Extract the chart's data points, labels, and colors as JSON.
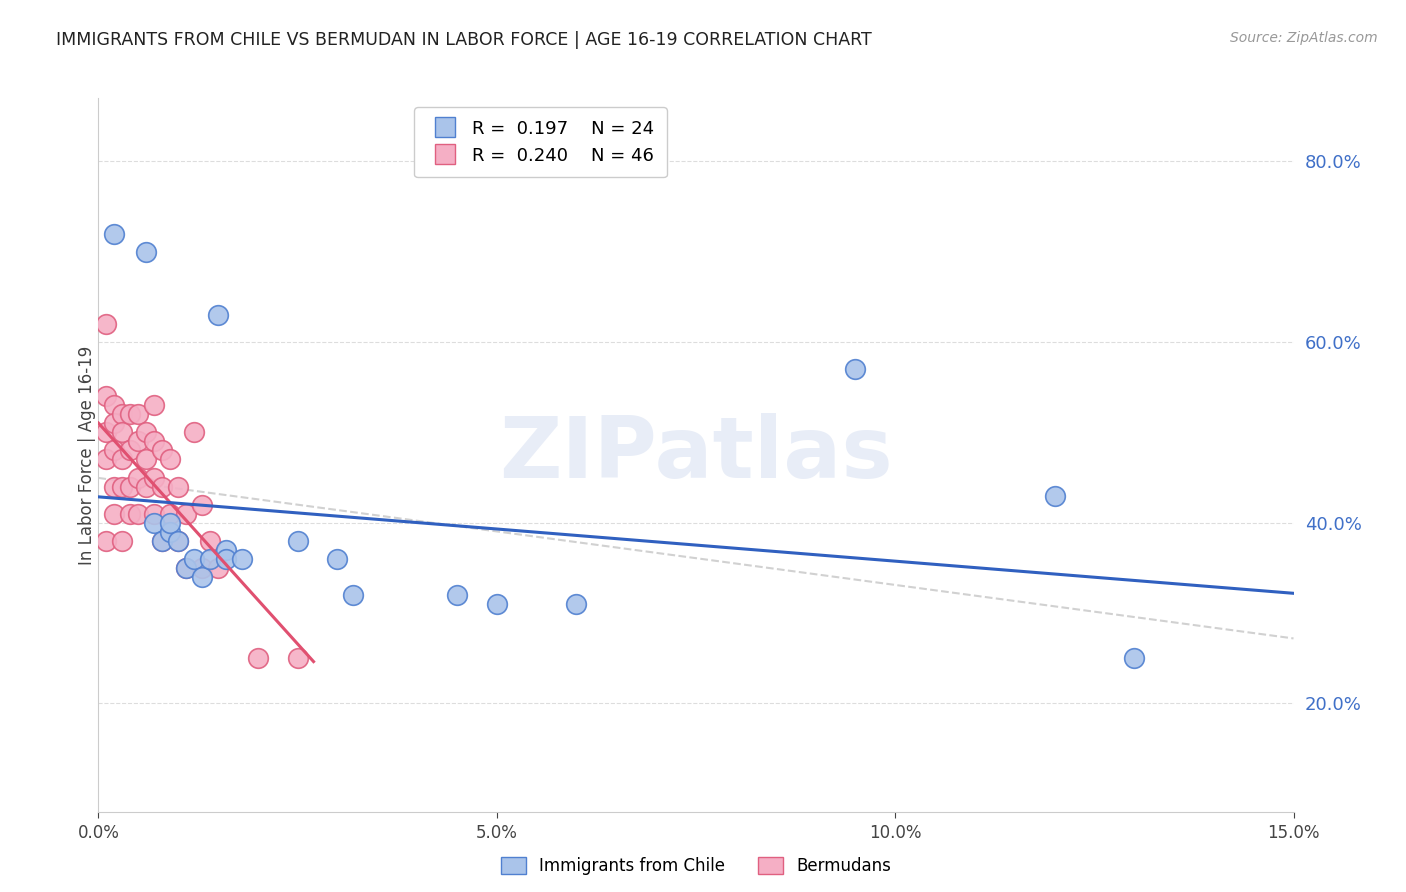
{
  "title": "IMMIGRANTS FROM CHILE VS BERMUDAN IN LABOR FORCE | AGE 16-19 CORRELATION CHART",
  "source": "Source: ZipAtlas.com",
  "ylabel": "In Labor Force | Age 16-19",
  "xmin": 0.0,
  "xmax": 0.15,
  "ymin": 0.08,
  "ymax": 0.87,
  "yticks": [
    0.2,
    0.4,
    0.6,
    0.8
  ],
  "xticks": [
    0.0,
    0.05,
    0.1,
    0.15
  ],
  "blue_label": "Immigrants from Chile",
  "pink_label": "Bermudans",
  "blue_R": "0.197",
  "blue_N": "24",
  "pink_R": "0.240",
  "pink_N": "46",
  "blue_color": "#aac4ea",
  "pink_color": "#f5afc5",
  "blue_edge_color": "#5080d0",
  "pink_edge_color": "#e06080",
  "blue_line_color": "#3060c0",
  "pink_line_color": "#e05070",
  "dashed_line_color": "#cccccc",
  "title_color": "#222222",
  "axis_label_color": "#4070c8",
  "watermark": "ZIPatlas",
  "blue_x": [
    0.002,
    0.006,
    0.007,
    0.008,
    0.009,
    0.009,
    0.01,
    0.011,
    0.012,
    0.013,
    0.014,
    0.015,
    0.016,
    0.016,
    0.018,
    0.025,
    0.03,
    0.032,
    0.045,
    0.05,
    0.06,
    0.095,
    0.12,
    0.13
  ],
  "blue_y": [
    0.72,
    0.7,
    0.4,
    0.38,
    0.39,
    0.4,
    0.38,
    0.35,
    0.36,
    0.34,
    0.36,
    0.63,
    0.37,
    0.36,
    0.36,
    0.38,
    0.36,
    0.32,
    0.32,
    0.31,
    0.31,
    0.57,
    0.43,
    0.25
  ],
  "pink_x": [
    0.001,
    0.001,
    0.001,
    0.001,
    0.001,
    0.002,
    0.002,
    0.002,
    0.002,
    0.002,
    0.003,
    0.003,
    0.003,
    0.003,
    0.003,
    0.004,
    0.004,
    0.004,
    0.004,
    0.005,
    0.005,
    0.005,
    0.005,
    0.006,
    0.006,
    0.006,
    0.007,
    0.007,
    0.007,
    0.007,
    0.008,
    0.008,
    0.008,
    0.009,
    0.009,
    0.01,
    0.01,
    0.011,
    0.011,
    0.012,
    0.013,
    0.013,
    0.014,
    0.015,
    0.02,
    0.025
  ],
  "pink_y": [
    0.62,
    0.54,
    0.5,
    0.47,
    0.38,
    0.53,
    0.51,
    0.48,
    0.44,
    0.41,
    0.52,
    0.5,
    0.47,
    0.44,
    0.38,
    0.52,
    0.48,
    0.44,
    0.41,
    0.52,
    0.49,
    0.45,
    0.41,
    0.5,
    0.47,
    0.44,
    0.53,
    0.49,
    0.45,
    0.41,
    0.48,
    0.44,
    0.38,
    0.47,
    0.41,
    0.44,
    0.38,
    0.41,
    0.35,
    0.5,
    0.42,
    0.35,
    0.38,
    0.35,
    0.25,
    0.25
  ]
}
